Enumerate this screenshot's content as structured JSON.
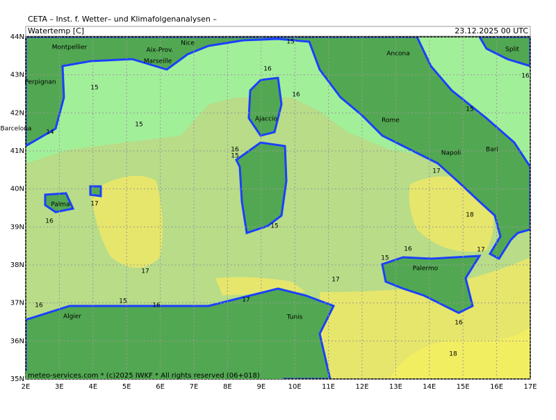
{
  "header": {
    "title": "CETA – Inst. f. Wetter– und Klimafolgenanalysen –",
    "parameter": "Watertemp [C]",
    "valid_time": "23.12.2025 00 UTC"
  },
  "footer": "meteo-services.com * (c)2025 IWKF * All rights reserved (06+018)",
  "map": {
    "lon_ticks": [
      {
        "value": 2,
        "label": "2E"
      },
      {
        "value": 3,
        "label": "3E"
      },
      {
        "value": 4,
        "label": "4E"
      },
      {
        "value": 5,
        "label": "5E"
      },
      {
        "value": 6,
        "label": "6E"
      },
      {
        "value": 7,
        "label": "7E"
      },
      {
        "value": 8,
        "label": "8E"
      },
      {
        "value": 9,
        "label": "9E"
      },
      {
        "value": 10,
        "label": "10E"
      },
      {
        "value": 11,
        "label": "11E"
      },
      {
        "value": 12,
        "label": "12E"
      },
      {
        "value": 13,
        "label": "13E"
      },
      {
        "value": 14,
        "label": "14E"
      },
      {
        "value": 15,
        "label": "15E"
      },
      {
        "value": 16,
        "label": "16E"
      },
      {
        "value": 17,
        "label": "17E"
      }
    ],
    "lat_ticks": [
      {
        "value": 35,
        "label": "35N"
      },
      {
        "value": 36,
        "label": "36N"
      },
      {
        "value": 37,
        "label": "37N"
      },
      {
        "value": 38,
        "label": "38N"
      },
      {
        "value": 39,
        "label": "39N"
      },
      {
        "value": 40,
        "label": "40N"
      },
      {
        "value": 41,
        "label": "41N"
      },
      {
        "value": 42,
        "label": "42N"
      },
      {
        "value": 43,
        "label": "43N"
      },
      {
        "value": 44,
        "label": "44N"
      }
    ],
    "cities": [
      "Montpellier",
      "Aix-Prov.",
      "Nice",
      "Marseille",
      "Perpignan",
      "Barcelona",
      "Ajaccio",
      "Palma",
      "Rome",
      "Ancona",
      "Split",
      "Napoli",
      "Bari",
      "Palermo",
      "Algier",
      "Tunis"
    ],
    "contour_labels": [
      15,
      16,
      16,
      15,
      15,
      14,
      16,
      15,
      17,
      16,
      17,
      15,
      17,
      18,
      17,
      16,
      15,
      17,
      17,
      15,
      16,
      16,
      16,
      18,
      16,
      15
    ]
  }
}
